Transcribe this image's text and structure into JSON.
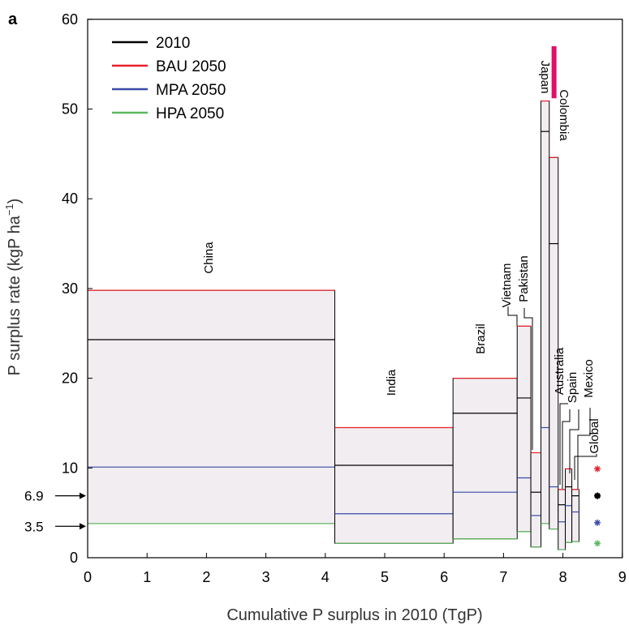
{
  "panel_label": "a",
  "chart_data": {
    "type": "bar",
    "subtype": "variable-width stacked scenario bars",
    "xlabel": "Cumulative P surplus in 2010 (TgP)",
    "ylabel_main": "P surplus rate (kgP ha",
    "ylabel_sup": "−1",
    "ylabel_end": ")",
    "xlim": [
      0,
      9
    ],
    "ylim": [
      0,
      60
    ],
    "xticks": [
      0,
      1,
      2,
      3,
      4,
      5,
      6,
      7,
      8,
      9
    ],
    "yticks": [
      0,
      10,
      20,
      30,
      40,
      50,
      60
    ],
    "grid": false,
    "legend_position": "top-left",
    "series": [
      {
        "name": "2010",
        "key": "y2010",
        "color": "#000000"
      },
      {
        "name": "BAU 2050",
        "key": "bau",
        "color": "#e8202a"
      },
      {
        "name": "MPA 2050",
        "key": "mpa",
        "color": "#3a4aa8"
      },
      {
        "name": "HPA 2050",
        "key": "hpa",
        "color": "#5cb85c"
      }
    ],
    "countries": [
      {
        "name": "China",
        "x0": 0.0,
        "x1": 4.16,
        "y2010": 24.3,
        "bau": 29.8,
        "mpa": 10.1,
        "hpa": 3.8
      },
      {
        "name": "India",
        "x0": 4.16,
        "x1": 6.15,
        "y2010": 10.3,
        "bau": 14.5,
        "mpa": 4.9,
        "hpa": 1.6
      },
      {
        "name": "Brazil",
        "x0": 6.15,
        "x1": 7.23,
        "y2010": 16.1,
        "bau": 20.0,
        "mpa": 7.3,
        "hpa": 2.1
      },
      {
        "name": "Vietnam",
        "x0": 7.23,
        "x1": 7.46,
        "y2010": 17.8,
        "bau": 25.8,
        "mpa": 8.9,
        "hpa": 2.9
      },
      {
        "name": "Pakistan",
        "x0": 7.46,
        "x1": 7.63,
        "y2010": 7.3,
        "bau": 11.7,
        "mpa": 4.7,
        "hpa": 1.2
      },
      {
        "name": "Japan",
        "x0": 7.63,
        "x1": 7.77,
        "y2010": 47.5,
        "bau": 50.9,
        "mpa": 14.5,
        "hpa": 3.8
      },
      {
        "name": "Colombia",
        "x0": 7.77,
        "x1": 7.92,
        "y2010": 35.0,
        "bau": 44.6,
        "mpa": 7.9,
        "hpa": 3.2
      },
      {
        "name": "Australia",
        "x0": 7.92,
        "x1": 8.04,
        "y2010": 5.9,
        "bau": 7.6,
        "mpa": 4.0,
        "hpa": 0.9
      },
      {
        "name": "Spain",
        "x0": 8.04,
        "x1": 8.15,
        "y2010": 7.9,
        "bau": 9.9,
        "mpa": 5.8,
        "hpa": 1.7
      },
      {
        "name": "Mexico",
        "x0": 8.15,
        "x1": 8.27,
        "y2010": 6.9,
        "bau": 7.6,
        "mpa": 5.1,
        "hpa": 1.8
      }
    ],
    "global": {
      "name": "Global",
      "x": 8.58,
      "y2010": 6.9,
      "bau": 9.9,
      "mpa": 3.9,
      "hpa": 1.6
    },
    "global_colors": {
      "y2010": "#000000",
      "bau": "#e8202a",
      "mpa": "#3a4aa8",
      "hpa": "#5cb85c"
    },
    "annotations": [
      {
        "text": "6.9",
        "value": 6.9
      },
      {
        "text": "3.5",
        "value": 3.5
      }
    ],
    "off_scale_marker": {
      "label": "Japan",
      "color": "#e0106a",
      "y_from": 51.2,
      "y_to": 57.0
    }
  }
}
